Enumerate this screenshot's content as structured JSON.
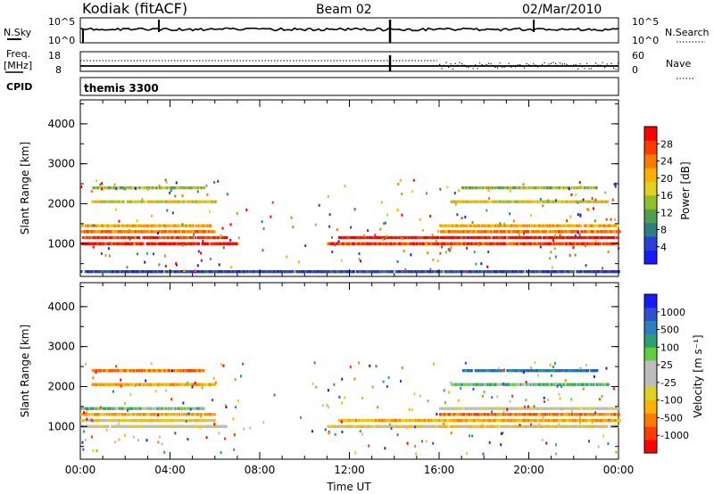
{
  "header": {
    "station": "Kodiak (fitACF)",
    "beam": "Beam 02",
    "date": "02/Mar/2010"
  },
  "panels": {
    "nsky_label": "N.Sky",
    "nsearch_label": "N.Search",
    "noise_ticks": [
      "10^5",
      "10^0"
    ],
    "freq_label_1": "Freq.",
    "freq_label_2": "[MHz]",
    "freq_ticks": [
      "18",
      "8"
    ],
    "nave_label": "Nave",
    "nave_ticks": [
      "60",
      "0"
    ],
    "cpid_label": "CPID",
    "cpid_value": "themis 3300"
  },
  "colors": {
    "power": [
      "#1a1aff",
      "#2b3fd6",
      "#2f7f7f",
      "#4f9f4f",
      "#8fbf2f",
      "#e0d020",
      "#ffb000",
      "#ff7a00",
      "#ff3b00",
      "#ff0000"
    ],
    "velocity": [
      "#ff0000",
      "#ff3b00",
      "#ff7a00",
      "#ffb000",
      "#e0d020",
      "#bdbdbd",
      "#bdbdbd",
      "#5fcf3f",
      "#2f9f6f",
      "#2f7fbf",
      "#3050d0",
      "#1a1aff"
    ]
  },
  "chart_data": [
    {
      "type": "heatmap",
      "name": "power",
      "ylabel": "Slant Range [km]",
      "ylim": [
        180,
        4600
      ],
      "yticks": [
        "1000",
        "2000",
        "3000",
        "4000"
      ],
      "xlim": [
        0,
        24
      ],
      "xticks": [],
      "colorbar_label": "Power [dB]",
      "colorbar_ticks": [
        "4",
        "8",
        "12",
        "16",
        "20",
        "24",
        "28"
      ],
      "bands": [
        {
          "range": 1000,
          "t0": 0.0,
          "t1": 7.0,
          "level": 9
        },
        {
          "range": 1150,
          "t0": 0.0,
          "t1": 6.5,
          "level": 8
        },
        {
          "range": 1300,
          "t0": 0.0,
          "t1": 6.0,
          "level": 7
        },
        {
          "range": 1450,
          "t0": 0.0,
          "t1": 5.8,
          "level": 6
        },
        {
          "range": 2050,
          "t0": 0.5,
          "t1": 6.0,
          "level": 5
        },
        {
          "range": 2400,
          "t0": 0.5,
          "t1": 5.5,
          "level": 4
        },
        {
          "range": 1000,
          "t0": 11.0,
          "t1": 24.0,
          "level": 8
        },
        {
          "range": 1150,
          "t0": 11.5,
          "t1": 24.0,
          "level": 9
        },
        {
          "range": 1300,
          "t0": 16.0,
          "t1": 24.0,
          "level": 7
        },
        {
          "range": 1450,
          "t0": 16.0,
          "t1": 24.0,
          "level": 6
        },
        {
          "range": 2050,
          "t0": 16.5,
          "t1": 23.5,
          "level": 5
        },
        {
          "range": 2400,
          "t0": 17.0,
          "t1": 23.0,
          "level": 4
        },
        {
          "range": 300,
          "t0": 0.0,
          "t1": 24.0,
          "level": 1
        }
      ]
    },
    {
      "type": "heatmap",
      "name": "velocity",
      "ylabel": "Slant Range [km]",
      "ylim": [
        180,
        4600
      ],
      "yticks": [
        "1000",
        "2000",
        "3000",
        "4000"
      ],
      "xlim": [
        0,
        24
      ],
      "xlabel": "Time UT",
      "xticks": [
        "00:00",
        "04:00",
        "08:00",
        "12:00",
        "16:00",
        "20:00",
        "00:00"
      ],
      "colorbar_label": "Velocity [m s⁻¹]",
      "colorbar_ticks": [
        "1000",
        "500",
        "100",
        "25",
        "-25",
        "-100",
        "-500",
        "-1000"
      ],
      "bands": [
        {
          "range": 1000,
          "t0": 0.0,
          "t1": 6.5,
          "level": 5
        },
        {
          "range": 1150,
          "t0": 0.0,
          "t1": 6.0,
          "level": 4
        },
        {
          "range": 1300,
          "t0": 0.0,
          "t1": 6.0,
          "level": 3
        },
        {
          "range": 1450,
          "t0": 0.0,
          "t1": 5.5,
          "level": 7
        },
        {
          "range": 2050,
          "t0": 0.5,
          "t1": 6.0,
          "level": 3
        },
        {
          "range": 2400,
          "t0": 0.5,
          "t1": 5.5,
          "level": 2
        },
        {
          "range": 1000,
          "t0": 11.0,
          "t1": 24.0,
          "level": 4
        },
        {
          "range": 1150,
          "t0": 11.5,
          "t1": 24.0,
          "level": 3
        },
        {
          "range": 1300,
          "t0": 16.0,
          "t1": 24.0,
          "level": 2
        },
        {
          "range": 1450,
          "t0": 16.0,
          "t1": 24.0,
          "level": 5
        },
        {
          "range": 2050,
          "t0": 16.5,
          "t1": 23.5,
          "level": 7
        },
        {
          "range": 2400,
          "t0": 17.0,
          "t1": 23.0,
          "level": 9
        }
      ]
    }
  ]
}
